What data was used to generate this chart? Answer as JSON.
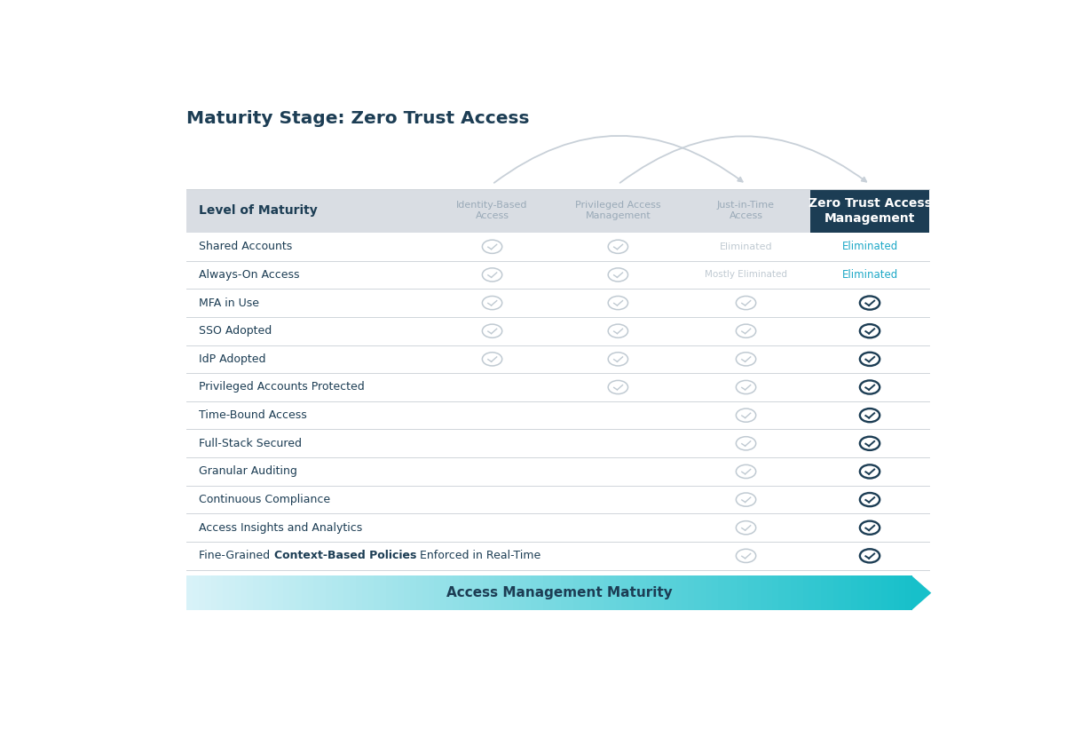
{
  "title": "Maturity Stage: Zero Trust Access",
  "background_color": "#ffffff",
  "header_row": [
    "Level of Maturity",
    "Identity-Based\nAccess",
    "Privileged Access\nManagement",
    "Just-in-Time\nAccess",
    "Zero Trust Access\nManagement"
  ],
  "rows": [
    [
      "Shared Accounts",
      "check_light",
      "check_light",
      "eliminated_light",
      "eliminated_dark"
    ],
    [
      "Always-On Access",
      "check_light",
      "check_light",
      "mostly_eliminated_light",
      "eliminated_dark"
    ],
    [
      "MFA in Use",
      "check_light",
      "check_light",
      "check_light",
      "check_dark"
    ],
    [
      "SSO Adopted",
      "check_light",
      "check_light",
      "check_light",
      "check_dark"
    ],
    [
      "IdP Adopted",
      "check_light",
      "check_light",
      "check_light",
      "check_dark"
    ],
    [
      "Privileged Accounts Protected",
      "none",
      "check_light",
      "check_light",
      "check_dark"
    ],
    [
      "Time-Bound Access",
      "none",
      "none",
      "check_light",
      "check_dark"
    ],
    [
      "Full-Stack Secured",
      "none",
      "none",
      "check_light",
      "check_dark"
    ],
    [
      "Granular Auditing",
      "none",
      "none",
      "check_light",
      "check_dark"
    ],
    [
      "Continuous Compliance",
      "none",
      "none",
      "check_light",
      "check_dark"
    ],
    [
      "Access Insights and Analytics",
      "none",
      "none",
      "check_light",
      "check_dark"
    ],
    [
      "Fine-Grained **Context-Based Policies** Enforced in Real-Time",
      "none",
      "none",
      "check_light",
      "check_dark"
    ]
  ],
  "footer_text": "Access Management Maturity",
  "dark_col_color": "#1c3d54",
  "header_gray_color": "#d9dde3",
  "row_line_color": "#d0d5da",
  "arrow_color": "#c8d0d8",
  "light_check_edge": "#c0cad2",
  "dark_check_edge": "#1c3d54",
  "eliminated_light_color": "#c0cad2",
  "eliminated_dark_color": "#1da8c7",
  "mostly_elim_color": "#c0cad2",
  "label_color": "#1c3d54",
  "header_label_color": "#9aaab8"
}
